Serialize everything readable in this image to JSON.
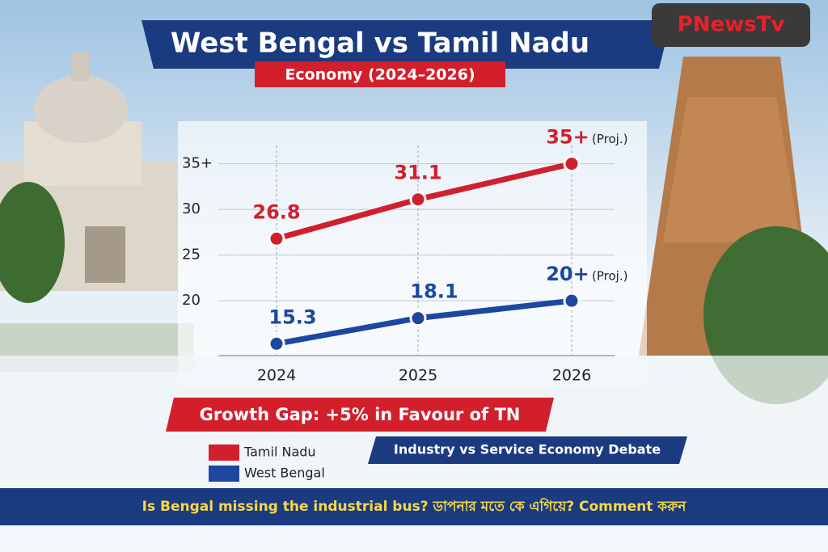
{
  "brand": "PNewsTv",
  "chart_data": {
    "type": "line",
    "title": "West Bengal vs Tamil Nadu",
    "subtitle": "Economy (2024–2026)",
    "categories": [
      "2024",
      "2025",
      "2026"
    ],
    "series": [
      {
        "name": "Tamil Nadu",
        "color": "#d0202e",
        "values": [
          26.8,
          31.1,
          35
        ],
        "value_labels": [
          "26.8",
          "31.1",
          "35+"
        ]
      },
      {
        "name": "West Bengal",
        "color": "#1d47a0",
        "values": [
          15.3,
          18.1,
          20
        ],
        "value_labels": [
          "15.3",
          "18.1",
          "20+"
        ]
      }
    ],
    "projection_note": "(Proj.)",
    "ylim": [
      14,
      37
    ],
    "yticks": [
      20,
      25,
      30,
      {
        "value": 35,
        "label": "35+"
      }
    ],
    "grid": true
  },
  "banners": {
    "growth_gap": "Growth Gap: +5% in Favour of TN",
    "debate": "Industry vs Service Economy Debate",
    "question": "Is Bengal missing the industrial bus? ডাপনার মতে কে এগিয়ে? Comment করুন"
  }
}
